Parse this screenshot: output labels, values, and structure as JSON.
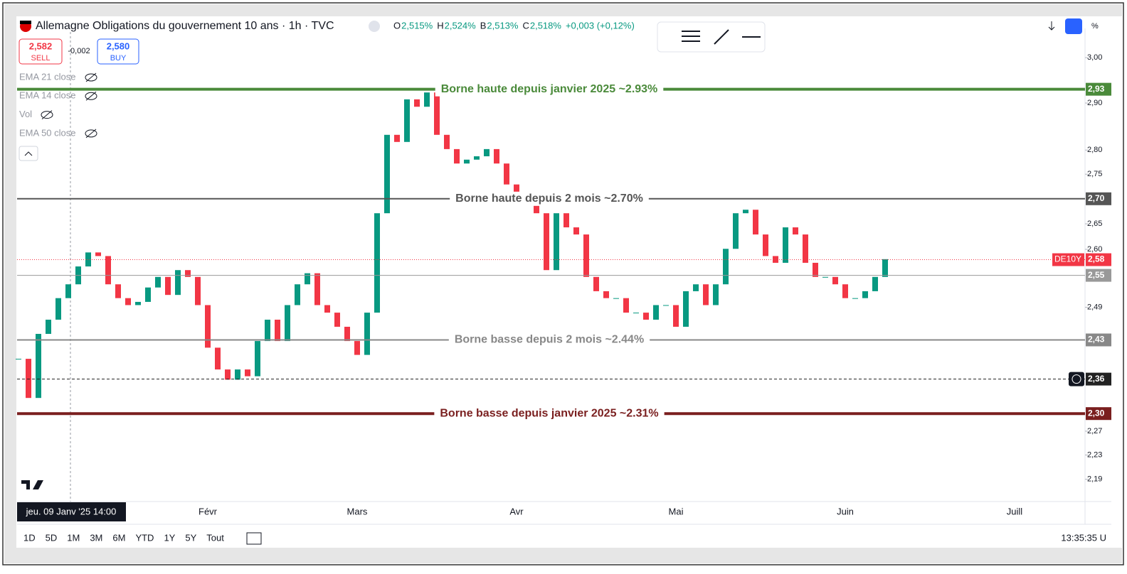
{
  "header": {
    "title": "Allemagne Obligations du gouvernement 10 ans · 1h · TVC",
    "ohlc": [
      {
        "key": "O",
        "value": "2,515%"
      },
      {
        "key": "H",
        "value": "2,524%"
      },
      {
        "key": "B",
        "value": "2,513%"
      },
      {
        "key": "C",
        "value": "2,518%"
      }
    ],
    "change": "+0,003 (+0,12%)",
    "sell": {
      "price": "2,582",
      "label": "SELL"
    },
    "spread": "-0,002",
    "buy": {
      "price": "2,580",
      "label": "BUY"
    }
  },
  "indicators": [
    "EMA 21 close",
    "EMA 14 close",
    "Vol",
    "EMA 50 close"
  ],
  "chart_data": {
    "type": "candlestick",
    "log_scale": true,
    "up_color": "#089981",
    "down_color": "#f23645",
    "categories": [
      null,
      null,
      null,
      null,
      null,
      null,
      null,
      null,
      null,
      null,
      null,
      null,
      null,
      null,
      null,
      null,
      null,
      null,
      null,
      "Févr",
      null,
      null,
      null,
      null,
      null,
      null,
      null,
      null,
      null,
      null,
      null,
      null,
      null,
      null,
      "Mars",
      null,
      null,
      null,
      null,
      null,
      null,
      null,
      null,
      null,
      null,
      null,
      null,
      null,
      null,
      null,
      "Avr",
      null,
      null,
      null,
      null,
      null,
      null,
      null,
      null,
      null,
      null,
      null,
      null,
      null,
      null,
      null,
      "Mai",
      null,
      null,
      null,
      null,
      null,
      null,
      null,
      null,
      null,
      null,
      null,
      null,
      null,
      null,
      null,
      null,
      "Juin",
      null,
      null,
      null,
      null,
      null,
      null,
      null,
      null,
      null,
      null,
      null,
      null,
      null,
      null,
      null,
      null,
      "Juill"
    ],
    "values": [
      2.396,
      2.327,
      2.441,
      2.467,
      2.507,
      2.533,
      2.567,
      2.594,
      2.587,
      2.533,
      2.507,
      2.494,
      2.5,
      2.527,
      2.547,
      2.513,
      2.56,
      2.547,
      2.494,
      2.416,
      2.377,
      2.359,
      2.377,
      2.365,
      2.428,
      2.467,
      2.428,
      2.494,
      2.533,
      2.554,
      2.494,
      2.48,
      2.454,
      2.428,
      2.403,
      2.48,
      2.671,
      2.832,
      2.817,
      2.908,
      2.892,
      2.923,
      2.832,
      2.802,
      2.772,
      2.78,
      2.787,
      2.802,
      2.772,
      2.729,
      2.714,
      2.693,
      2.671,
      2.56,
      2.671,
      2.643,
      2.629,
      2.547,
      2.52,
      2.507,
      2.507,
      2.48,
      2.48,
      2.467,
      2.494,
      2.494,
      2.454,
      2.52,
      2.533,
      2.494,
      2.533,
      2.601,
      2.671,
      2.678,
      2.629,
      2.587,
      2.574,
      2.643,
      2.629,
      2.574,
      2.547,
      2.547,
      2.533,
      2.507,
      2.507,
      2.52,
      2.547,
      2.581,
      null,
      null,
      null,
      null,
      null,
      null,
      null,
      null,
      null,
      null,
      null,
      null,
      null
    ],
    "ylim": [
      2.155,
      3.058
    ],
    "yticks": [
      {
        "value": 3.0,
        "label": "3,00"
      },
      {
        "value": 2.9,
        "label": "2,90"
      },
      {
        "value": 2.8,
        "label": "2,80"
      },
      {
        "value": 2.75,
        "label": "2,75"
      },
      {
        "value": 2.65,
        "label": "2,65"
      },
      {
        "value": 2.6,
        "label": "2,60"
      },
      {
        "value": 2.49,
        "label": "2,49"
      },
      {
        "value": 2.27,
        "label": "2,27"
      },
      {
        "value": 2.23,
        "label": "2,23"
      },
      {
        "value": 2.19,
        "label": "2,19"
      }
    ],
    "levels": [
      {
        "value": 2.93,
        "label": "2,93",
        "text": "Borne haute depuis janvier 2025 ~2.93%",
        "color": "#4a8a3a",
        "width": 4,
        "style": "solid"
      },
      {
        "value": 2.7,
        "label": "2,70",
        "text": "Borne haute depuis 2 mois ~2.70%",
        "color": "#555555",
        "width": 2,
        "style": "solid"
      },
      {
        "value": 2.58,
        "label": "2,58",
        "color": "#f23645",
        "width": 1,
        "style": "dotted"
      },
      {
        "value": 2.55,
        "label": "2,55",
        "color": "#999999",
        "width": 1,
        "style": "solid"
      },
      {
        "value": 2.43,
        "label": "2,43",
        "text": "Borne basse depuis 2 mois ~2.44%",
        "color": "#888888",
        "width": 2,
        "style": "solid"
      },
      {
        "value": 2.36,
        "label": "2,36",
        "color": "#222222",
        "width": 1,
        "style": "dashed"
      },
      {
        "value": 2.3,
        "label": "2,30",
        "text": "Borne basse depuis janvier 2025 ~2.31%",
        "color": "#7a1f1f",
        "width": 4,
        "style": "solid"
      }
    ],
    "symbol_label": "DE10Y",
    "crosshair_label": "jeu. 09 Janv '25 14:00"
  },
  "footer": {
    "ranges": [
      "1D",
      "5D",
      "1M",
      "3M",
      "6M",
      "YTD",
      "1Y",
      "5Y",
      "Tout"
    ],
    "clock": "13:35:35 U"
  }
}
